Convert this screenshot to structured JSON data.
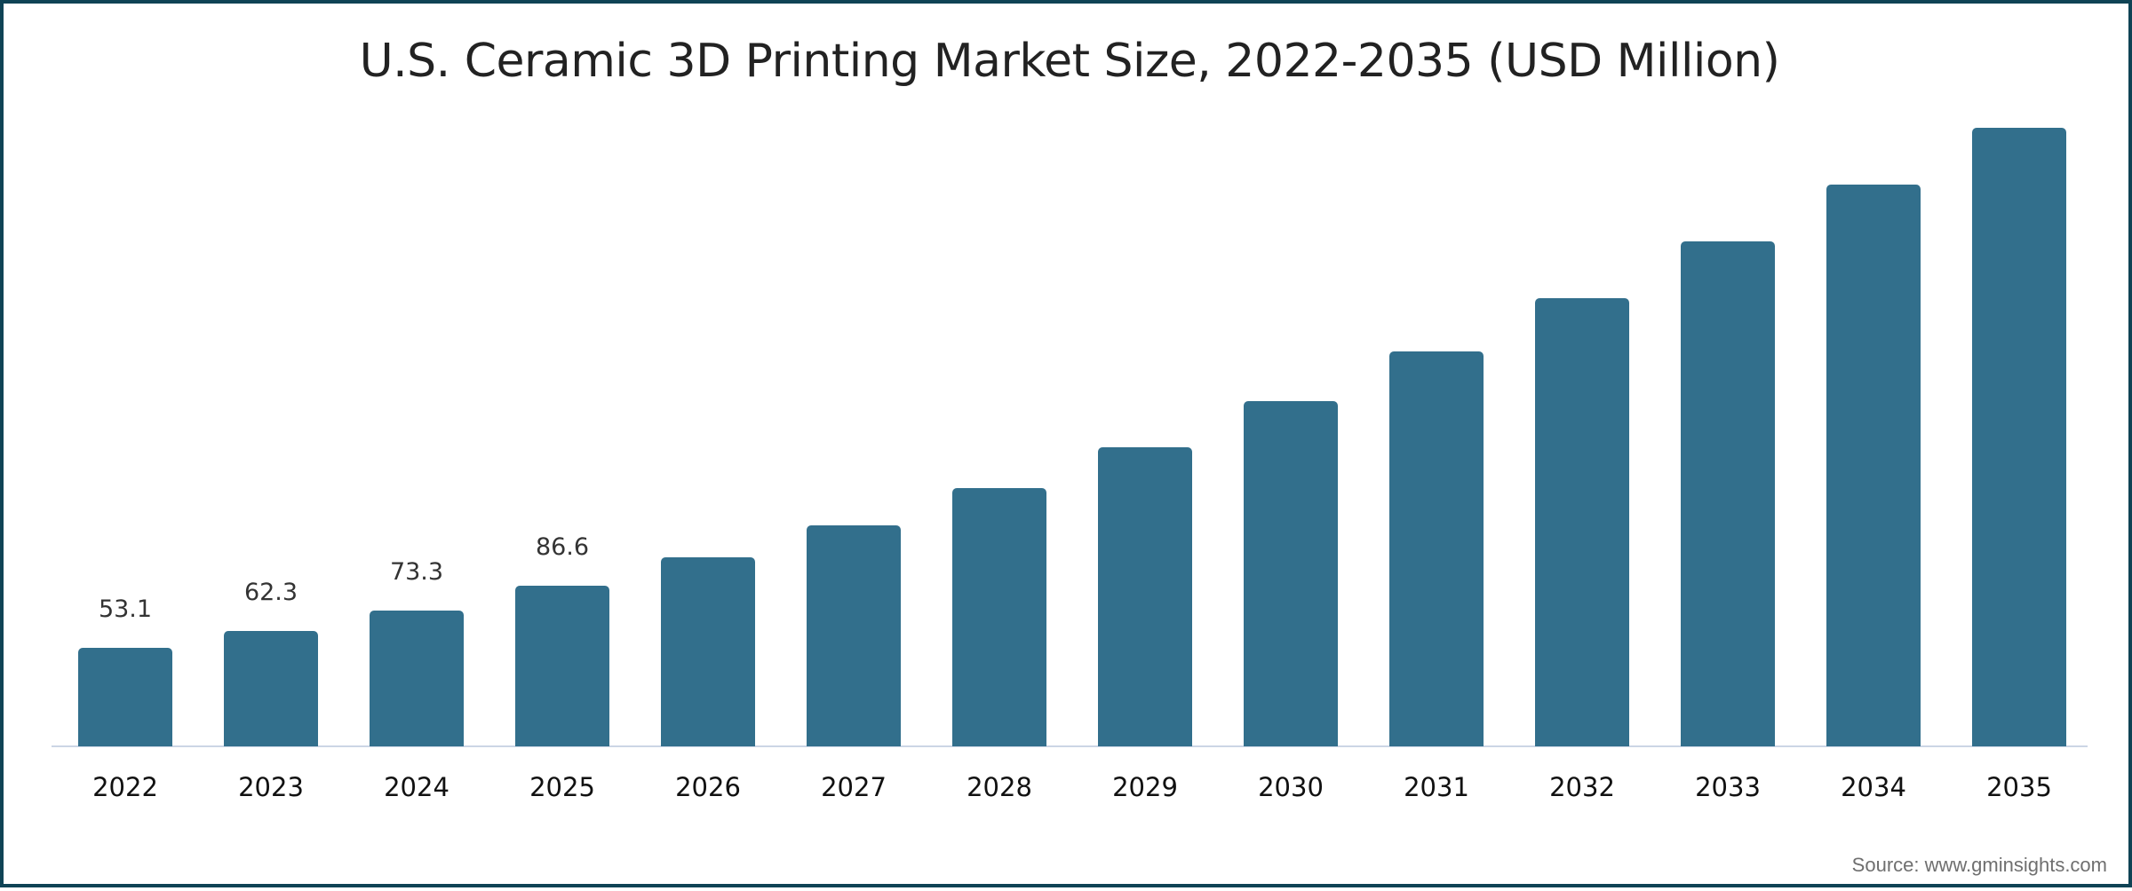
{
  "chart": {
    "title": "U.S. Ceramic 3D Printing Market Size, 2022-2035 (USD Million)",
    "source": "Source: www.gminsights.com",
    "bar_color": "#326f8c",
    "frame_color": "#0f4355",
    "axis_color": "#ccd6e5"
  },
  "chart_data": {
    "type": "bar",
    "title": "U.S. Ceramic 3D Printing Market Size, 2022-2035 (USD Million)",
    "xlabel": "",
    "ylabel": "USD Million",
    "categories": [
      "2022",
      "2023",
      "2024",
      "2025",
      "2026",
      "2027",
      "2028",
      "2029",
      "2030",
      "2031",
      "2032",
      "2033",
      "2034",
      "2035"
    ],
    "values": [
      53.1,
      62.3,
      73.3,
      86.6,
      101.9,
      119.1,
      139.2,
      161.2,
      186.1,
      212.9,
      241.6,
      272.2,
      302.9,
      333.5
    ],
    "data_labels": [
      "53.1",
      "62.3",
      "73.3",
      "86.6",
      "",
      "",
      "",
      "",
      "",
      "",
      "",
      "",
      "",
      ""
    ],
    "ylim": [
      0,
      340
    ],
    "grid": false,
    "legend": null,
    "annotations": [
      "Source: www.gminsights.com"
    ]
  }
}
